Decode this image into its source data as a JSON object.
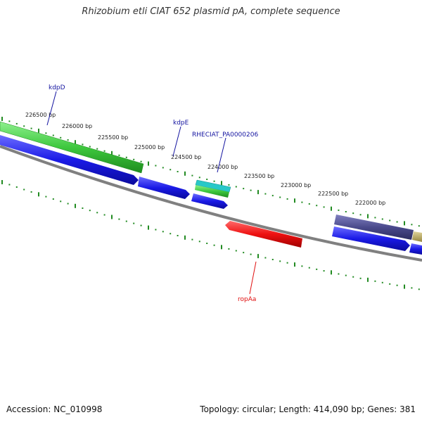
{
  "title": "Rhizobium etli CIAT 652 plasmid pA, complete sequence",
  "footer": {
    "accession": "Accession: NC_010998",
    "topology": "Topology: circular; Length: 414,090 bp; Genes: 381"
  },
  "ruler_labels": [
    "226500 bp",
    "226000 bp",
    "225500 bp",
    "225000 bp",
    "224500 bp",
    "224000 bp",
    "223500 bp",
    "223000 bp",
    "222500 bp",
    "222000 bp"
  ],
  "gene_labels": [
    {
      "text": "kdpD",
      "color": "#1414a0"
    },
    {
      "text": "kdpE",
      "color": "#1414a0"
    },
    {
      "text": "RHECIAT_PA0000206",
      "color": "#1414a0"
    },
    {
      "text": "ropAa",
      "color": "#e01010"
    }
  ],
  "colors": {
    "tick": "#228b22",
    "backbone": "#808080",
    "cds_blue": "#1a1ae6",
    "gene_green": "#3ec83e",
    "cyan": "#28c8c8",
    "red": "#ee1111",
    "purple": "#4a4a8c",
    "olive": "#b8a860"
  }
}
